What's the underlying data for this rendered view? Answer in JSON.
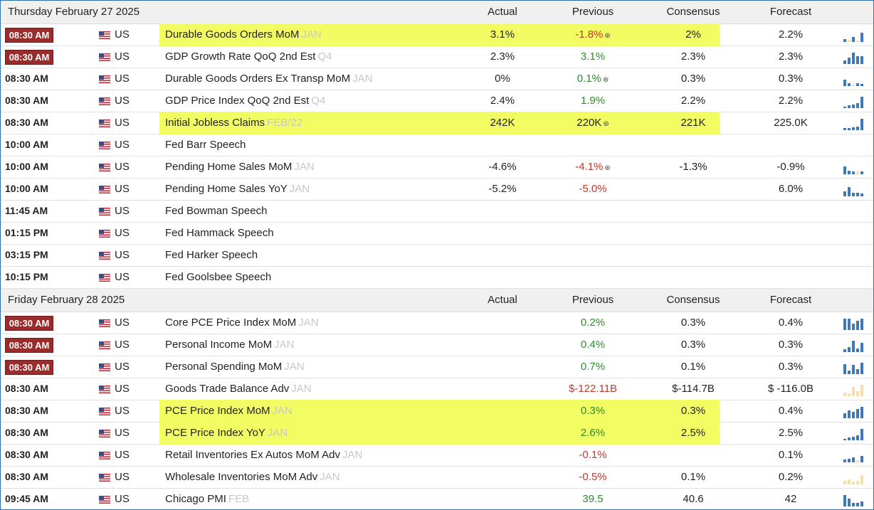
{
  "columns": {
    "actual": "Actual",
    "previous": "Previous",
    "consensus": "Consensus",
    "forecast": "Forecast"
  },
  "colors": {
    "badge": "#9b2c2c",
    "highlight": "#f2fd63",
    "positive": "#2e8b2e",
    "negative": "#c0392b",
    "spark_blue": "#3f78b8",
    "spark_tan": "#f5dfae"
  },
  "sections": [
    {
      "date": "Thursday February 27 2025",
      "rows": [
        {
          "time": "08:30 AM",
          "badge": true,
          "country": "US",
          "event": "Durable Goods Orders MoM",
          "ref": "JAN",
          "actual": "3.1%",
          "previous": "-1.8%",
          "prev_tone": "neg",
          "revised": true,
          "consensus": "2%",
          "forecast": "2.2%",
          "highlight": true,
          "spark": "p1"
        },
        {
          "time": "08:30 AM",
          "badge": true,
          "country": "US",
          "event": "GDP Growth Rate QoQ 2nd Est",
          "ref": "Q4",
          "actual": "2.3%",
          "previous": "3.1%",
          "prev_tone": "pos",
          "revised": false,
          "consensus": "2.3%",
          "forecast": "2.3%",
          "highlight": false,
          "spark": "p2"
        },
        {
          "time": "08:30 AM",
          "badge": false,
          "country": "US",
          "event": "Durable Goods Orders Ex Transp MoM",
          "ref": "JAN",
          "actual": "0%",
          "previous": "0.1%",
          "prev_tone": "pos",
          "revised": true,
          "consensus": "0.3%",
          "forecast": "0.3%",
          "highlight": false,
          "spark": "p3"
        },
        {
          "time": "08:30 AM",
          "badge": false,
          "country": "US",
          "event": "GDP Price Index QoQ 2nd Est",
          "ref": "Q4",
          "actual": "2.4%",
          "previous": "1.9%",
          "prev_tone": "pos",
          "revised": false,
          "consensus": "2.2%",
          "forecast": "2.2%",
          "highlight": false,
          "spark": "p4"
        },
        {
          "time": "08:30 AM",
          "badge": false,
          "country": "US",
          "event": "Initial Jobless Claims",
          "ref": "FEB/22",
          "actual": "242K",
          "previous": "220K",
          "prev_tone": "",
          "revised": true,
          "consensus": "221K",
          "forecast": "225.0K",
          "highlight": true,
          "spark": "p5"
        },
        {
          "time": "10:00 AM",
          "badge": false,
          "country": "US",
          "event": "Fed Barr Speech",
          "ref": "",
          "actual": "",
          "previous": "",
          "prev_tone": "",
          "revised": false,
          "consensus": "",
          "forecast": "",
          "highlight": false,
          "spark": ""
        },
        {
          "time": "10:00 AM",
          "badge": false,
          "country": "US",
          "event": "Pending Home Sales MoM",
          "ref": "JAN",
          "actual": "-4.6%",
          "previous": "-4.1%",
          "prev_tone": "neg",
          "revised": true,
          "consensus": "-1.3%",
          "forecast": "-0.9%",
          "highlight": false,
          "spark": "p6"
        },
        {
          "time": "10:00 AM",
          "badge": false,
          "country": "US",
          "event": "Pending Home Sales YoY",
          "ref": "JAN",
          "actual": "-5.2%",
          "previous": "-5.0%",
          "prev_tone": "neg",
          "revised": false,
          "consensus": "",
          "forecast": "6.0%",
          "highlight": false,
          "spark": "p7"
        },
        {
          "time": "11:45 AM",
          "badge": false,
          "country": "US",
          "event": "Fed Bowman Speech",
          "ref": "",
          "actual": "",
          "previous": "",
          "prev_tone": "",
          "revised": false,
          "consensus": "",
          "forecast": "",
          "highlight": false,
          "spark": ""
        },
        {
          "time": "01:15 PM",
          "badge": false,
          "country": "US",
          "event": "Fed Hammack Speech",
          "ref": "",
          "actual": "",
          "previous": "",
          "prev_tone": "",
          "revised": false,
          "consensus": "",
          "forecast": "",
          "highlight": false,
          "spark": ""
        },
        {
          "time": "03:15 PM",
          "badge": false,
          "country": "US",
          "event": "Fed Harker Speech",
          "ref": "",
          "actual": "",
          "previous": "",
          "prev_tone": "",
          "revised": false,
          "consensus": "",
          "forecast": "",
          "highlight": false,
          "spark": ""
        },
        {
          "time": "10:15 PM",
          "badge": false,
          "country": "US",
          "event": "Fed Goolsbee Speech",
          "ref": "",
          "actual": "",
          "previous": "",
          "prev_tone": "",
          "revised": false,
          "consensus": "",
          "forecast": "",
          "highlight": false,
          "spark": ""
        }
      ]
    },
    {
      "date": "Friday February 28 2025",
      "rows": [
        {
          "time": "08:30 AM",
          "badge": true,
          "country": "US",
          "event": "Core PCE Price Index MoM",
          "ref": "JAN",
          "actual": "",
          "previous": "0.2%",
          "prev_tone": "pos",
          "revised": false,
          "consensus": "0.3%",
          "forecast": "0.4%",
          "highlight": false,
          "spark": "p8"
        },
        {
          "time": "08:30 AM",
          "badge": true,
          "country": "US",
          "event": "Personal Income MoM",
          "ref": "JAN",
          "actual": "",
          "previous": "0.4%",
          "prev_tone": "pos",
          "revised": false,
          "consensus": "0.3%",
          "forecast": "0.3%",
          "highlight": false,
          "spark": "p9"
        },
        {
          "time": "08:30 AM",
          "badge": true,
          "country": "US",
          "event": "Personal Spending MoM",
          "ref": "JAN",
          "actual": "",
          "previous": "0.7%",
          "prev_tone": "pos",
          "revised": false,
          "consensus": "0.1%",
          "forecast": "0.3%",
          "highlight": false,
          "spark": "p10"
        },
        {
          "time": "08:30 AM",
          "badge": false,
          "country": "US",
          "event": "Goods Trade Balance Adv",
          "ref": "JAN",
          "actual": "",
          "previous": "$-122.11B",
          "prev_tone": "neg",
          "revised": false,
          "consensus": "$-114.7B",
          "forecast": "$ -116.0B",
          "highlight": false,
          "spark": "t1"
        },
        {
          "time": "08:30 AM",
          "badge": false,
          "country": "US",
          "event": "PCE Price Index MoM",
          "ref": "JAN",
          "actual": "",
          "previous": "0.3%",
          "prev_tone": "pos",
          "revised": false,
          "consensus": "0.3%",
          "forecast": "0.4%",
          "highlight": true,
          "spark": "p11"
        },
        {
          "time": "08:30 AM",
          "badge": false,
          "country": "US",
          "event": "PCE Price Index YoY",
          "ref": "JAN",
          "actual": "",
          "previous": "2.6%",
          "prev_tone": "pos",
          "revised": false,
          "consensus": "2.5%",
          "forecast": "2.5%",
          "highlight": true,
          "spark": "p12"
        },
        {
          "time": "08:30 AM",
          "badge": false,
          "country": "US",
          "event": "Retail Inventories Ex Autos MoM Adv",
          "ref": "JAN",
          "actual": "",
          "previous": "-0.1%",
          "prev_tone": "neg",
          "revised": false,
          "consensus": "",
          "forecast": "0.1%",
          "highlight": false,
          "spark": "p13"
        },
        {
          "time": "08:30 AM",
          "badge": false,
          "country": "US",
          "event": "Wholesale Inventories MoM Adv",
          "ref": "JAN",
          "actual": "",
          "previous": "-0.5%",
          "prev_tone": "neg",
          "revised": false,
          "consensus": "0.1%",
          "forecast": "0.2%",
          "highlight": false,
          "spark": "t2"
        },
        {
          "time": "09:45 AM",
          "badge": false,
          "country": "US",
          "event": "Chicago PMI",
          "ref": "FEB",
          "actual": "",
          "previous": "39.5",
          "prev_tone": "pos",
          "revised": false,
          "consensus": "40.6",
          "forecast": "42",
          "highlight": false,
          "spark": "p14"
        }
      ]
    }
  ]
}
